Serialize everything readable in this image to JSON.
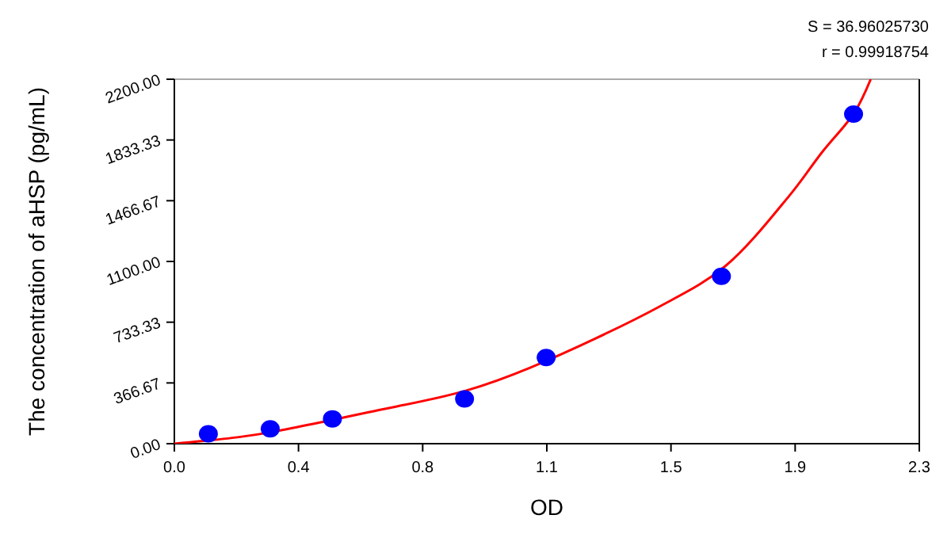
{
  "chart_data": {
    "type": "scatter",
    "xlabel": "OD",
    "ylabel": "The concentration of aHSP (pg/mL)",
    "annotations": [
      "S = 36.96025730",
      "r = 0.99918754"
    ],
    "xlim": [
      0,
      2.3
    ],
    "ylim": [
      0,
      2200
    ],
    "xticks": [
      {
        "value": 0,
        "label": "0.0"
      },
      {
        "value": 0.3833,
        "label": "0.4"
      },
      {
        "value": 0.7667,
        "label": "0.8"
      },
      {
        "value": 1.15,
        "label": "1.1"
      },
      {
        "value": 1.5333,
        "label": "1.5"
      },
      {
        "value": 1.9167,
        "label": "1.9"
      },
      {
        "value": 2.3,
        "label": "2.3"
      }
    ],
    "yticks": [
      {
        "value": 0,
        "label": "0.00"
      },
      {
        "value": 366.67,
        "label": "366.67"
      },
      {
        "value": 733.33,
        "label": "733.33"
      },
      {
        "value": 1100,
        "label": "1100.00"
      },
      {
        "value": 1466.67,
        "label": "1466.67"
      },
      {
        "value": 1833.33,
        "label": "1833.33"
      },
      {
        "value": 2200,
        "label": "2200.00"
      }
    ],
    "grid": false,
    "marker": "circle",
    "series": [
      {
        "color": "#0000ff",
        "x": [
          0.105,
          0.296,
          0.488,
          0.896,
          1.148,
          1.689,
          2.097
        ],
        "values": [
          60,
          90,
          150,
          270,
          520,
          1010,
          1990
        ]
      },
      {
        "type": "line",
        "color": "#ff0000",
        "marker": "none",
        "line_style": "solid",
        "x": [
          0,
          0.2,
          0.3,
          0.6,
          0.9,
          1.1,
          1.5,
          1.7,
          1.9,
          2.0,
          2.1,
          2.15
        ],
        "values": [
          0,
          40,
          70,
          190,
          320,
          460,
          830,
          1070,
          1500,
          1760,
          2000,
          2200
        ]
      }
    ]
  }
}
